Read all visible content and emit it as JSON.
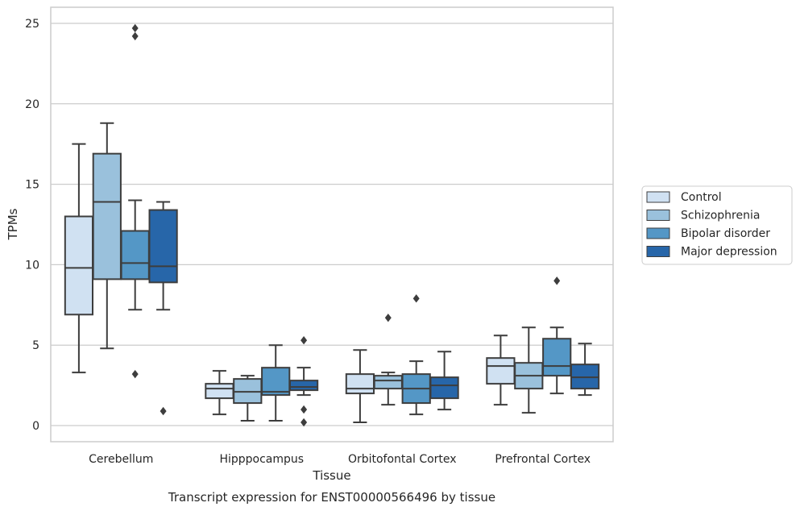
{
  "chart_data": {
    "type": "boxplot",
    "title": "",
    "xlabel": "Tissue",
    "ylabel": "TPMs",
    "caption": "Transcript expression for ENST00000566496 by tissue",
    "ylim": [
      -1,
      26
    ],
    "yticks": [
      0,
      5,
      10,
      15,
      20,
      25
    ],
    "grid": "horizontal",
    "legend_position": "right",
    "categories": [
      "Cerebellum",
      "Hipppocampus",
      "Orbitofontal Cortex",
      "Prefrontal Cortex"
    ],
    "series": [
      {
        "name": "Control",
        "color": "#d0e1f2",
        "boxes": [
          {
            "whisker_low": 3.3,
            "q1": 6.9,
            "median": 9.8,
            "q3": 13.0,
            "whisker_high": 17.5,
            "outliers": []
          },
          {
            "whisker_low": 0.7,
            "q1": 1.7,
            "median": 2.3,
            "q3": 2.6,
            "whisker_high": 3.4,
            "outliers": []
          },
          {
            "whisker_low": 0.2,
            "q1": 2.0,
            "median": 2.3,
            "q3": 3.2,
            "whisker_high": 4.7,
            "outliers": []
          },
          {
            "whisker_low": 1.3,
            "q1": 2.6,
            "median": 3.7,
            "q3": 4.2,
            "whisker_high": 5.6,
            "outliers": []
          }
        ]
      },
      {
        "name": "Schizophrenia",
        "color": "#9ac1dc",
        "boxes": [
          {
            "whisker_low": 4.8,
            "q1": 9.1,
            "median": 13.9,
            "q3": 16.9,
            "whisker_high": 18.8,
            "outliers": []
          },
          {
            "whisker_low": 0.3,
            "q1": 1.4,
            "median": 2.1,
            "q3": 2.9,
            "whisker_high": 3.1,
            "outliers": []
          },
          {
            "whisker_low": 1.3,
            "q1": 2.3,
            "median": 2.8,
            "q3": 3.1,
            "whisker_high": 3.3,
            "outliers": [
              6.7
            ]
          },
          {
            "whisker_low": 0.8,
            "q1": 2.3,
            "median": 3.1,
            "q3": 3.9,
            "whisker_high": 6.1,
            "outliers": []
          }
        ]
      },
      {
        "name": "Bipolar disorder",
        "color": "#5497c6",
        "boxes": [
          {
            "whisker_low": 7.2,
            "q1": 9.1,
            "median": 10.1,
            "q3": 12.1,
            "whisker_high": 14.0,
            "outliers": [
              3.2,
              24.2,
              24.7
            ]
          },
          {
            "whisker_low": 0.3,
            "q1": 1.9,
            "median": 2.1,
            "q3": 3.6,
            "whisker_high": 5.0,
            "outliers": []
          },
          {
            "whisker_low": 0.7,
            "q1": 1.4,
            "median": 2.3,
            "q3": 3.2,
            "whisker_high": 4.0,
            "outliers": [
              7.9
            ]
          },
          {
            "whisker_low": 2.0,
            "q1": 3.1,
            "median": 3.7,
            "q3": 5.4,
            "whisker_high": 6.1,
            "outliers": [
              9.0
            ]
          }
        ]
      },
      {
        "name": "Major depression",
        "color": "#2766a9",
        "boxes": [
          {
            "whisker_low": 7.2,
            "q1": 8.9,
            "median": 9.9,
            "q3": 13.4,
            "whisker_high": 13.9,
            "outliers": [
              0.9
            ]
          },
          {
            "whisker_low": 1.9,
            "q1": 2.2,
            "median": 2.4,
            "q3": 2.8,
            "whisker_high": 3.6,
            "outliers": [
              5.3,
              1.0,
              0.2
            ]
          },
          {
            "whisker_low": 1.0,
            "q1": 1.7,
            "median": 2.5,
            "q3": 3.0,
            "whisker_high": 4.6,
            "outliers": []
          },
          {
            "whisker_low": 1.9,
            "q1": 2.3,
            "median": 3.0,
            "q3": 3.8,
            "whisker_high": 5.1,
            "outliers": []
          }
        ]
      }
    ]
  }
}
